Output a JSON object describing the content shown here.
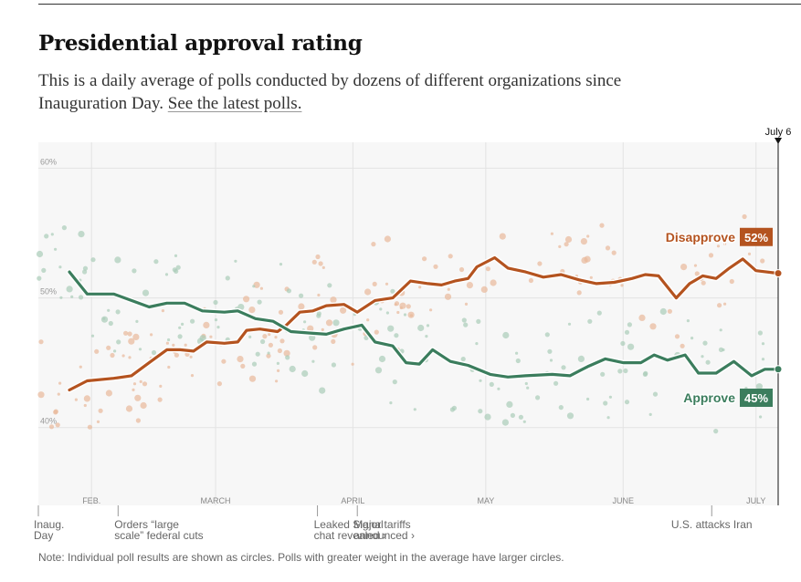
{
  "header": {
    "title": "Presidential approval rating",
    "subtitle_text": "This is a daily average of polls conducted by dozens of different organizations since Inauguration Day. ",
    "subtitle_link": "See the latest polls."
  },
  "note": "Note: Individual poll results are shown as circles. Polls with greater weight in the average have larger circles.",
  "colors": {
    "approve": "#3b7d5d",
    "disapprove": "#b4531f",
    "approve_dot": "#a9ccb8",
    "disapprove_dot": "#e8b89a",
    "plot_bg": "#f7f7f7",
    "grid": "#e3e3e3"
  },
  "chart_data": {
    "type": "line",
    "x_start": "2025-01-20",
    "x_end": "2025-07-06",
    "ylim": [
      34,
      62
    ],
    "y_ticks": [
      {
        "value": 60,
        "label": "60%"
      },
      {
        "value": 50,
        "label": "50%"
      },
      {
        "value": 40,
        "label": "40%"
      }
    ],
    "month_ticks": [
      {
        "label": "FEB.",
        "date": "2025-02-01"
      },
      {
        "label": "MARCH",
        "date": "2025-03-01"
      },
      {
        "label": "APRIL",
        "date": "2025-04-01"
      },
      {
        "label": "MAY",
        "date": "2025-05-01"
      },
      {
        "label": "JUNE",
        "date": "2025-06-01"
      },
      {
        "label": "JULY",
        "date": "2025-07-01"
      }
    ],
    "current_marker": {
      "label": "July 6",
      "date": "2025-07-06"
    },
    "series": [
      {
        "name": "Disapprove",
        "end_label": "52%",
        "points": [
          [
            "2025-01-27",
            42.9
          ],
          [
            "2025-01-31",
            43.6
          ],
          [
            "2025-02-06",
            43.8
          ],
          [
            "2025-02-10",
            44.0
          ],
          [
            "2025-02-14",
            45.0
          ],
          [
            "2025-02-18",
            46.0
          ],
          [
            "2025-02-21",
            46.0
          ],
          [
            "2025-02-24",
            45.9
          ],
          [
            "2025-02-27",
            46.6
          ],
          [
            "2025-03-03",
            46.5
          ],
          [
            "2025-03-06",
            46.6
          ],
          [
            "2025-03-08",
            47.5
          ],
          [
            "2025-03-11",
            47.6
          ],
          [
            "2025-03-15",
            47.4
          ],
          [
            "2025-03-17",
            47.9
          ],
          [
            "2025-03-20",
            48.9
          ],
          [
            "2025-03-23",
            49.0
          ],
          [
            "2025-03-26",
            49.4
          ],
          [
            "2025-03-30",
            49.5
          ],
          [
            "2025-04-02",
            48.9
          ],
          [
            "2025-04-06",
            49.8
          ],
          [
            "2025-04-10",
            50.0
          ],
          [
            "2025-04-14",
            51.3
          ],
          [
            "2025-04-18",
            51.1
          ],
          [
            "2025-04-21",
            51.0
          ],
          [
            "2025-04-24",
            51.3
          ],
          [
            "2025-04-27",
            51.5
          ],
          [
            "2025-04-29",
            52.4
          ],
          [
            "2025-05-03",
            53.1
          ],
          [
            "2025-05-06",
            52.3
          ],
          [
            "2025-05-10",
            52.0
          ],
          [
            "2025-05-14",
            51.6
          ],
          [
            "2025-05-18",
            51.8
          ],
          [
            "2025-05-22",
            51.4
          ],
          [
            "2025-05-26",
            51.1
          ],
          [
            "2025-05-30",
            51.2
          ],
          [
            "2025-06-03",
            51.5
          ],
          [
            "2025-06-06",
            51.8
          ],
          [
            "2025-06-09",
            51.7
          ],
          [
            "2025-06-13",
            50.0
          ],
          [
            "2025-06-16",
            51.1
          ],
          [
            "2025-06-19",
            51.7
          ],
          [
            "2025-06-22",
            51.5
          ],
          [
            "2025-06-25",
            52.3
          ],
          [
            "2025-06-28",
            53.0
          ],
          [
            "2025-07-01",
            52.1
          ],
          [
            "2025-07-06",
            51.9
          ]
        ]
      },
      {
        "name": "Approve",
        "end_label": "45%",
        "points": [
          [
            "2025-01-27",
            52.0
          ],
          [
            "2025-01-31",
            50.3
          ],
          [
            "2025-02-06",
            50.3
          ],
          [
            "2025-02-10",
            49.8
          ],
          [
            "2025-02-14",
            49.3
          ],
          [
            "2025-02-18",
            49.6
          ],
          [
            "2025-02-22",
            49.6
          ],
          [
            "2025-02-26",
            49.0
          ],
          [
            "2025-03-03",
            48.9
          ],
          [
            "2025-03-06",
            49.0
          ],
          [
            "2025-03-10",
            48.4
          ],
          [
            "2025-03-14",
            48.2
          ],
          [
            "2025-03-18",
            47.4
          ],
          [
            "2025-03-22",
            47.3
          ],
          [
            "2025-03-26",
            47.2
          ],
          [
            "2025-03-30",
            47.6
          ],
          [
            "2025-04-03",
            47.9
          ],
          [
            "2025-04-06",
            46.6
          ],
          [
            "2025-04-10",
            46.3
          ],
          [
            "2025-04-13",
            45.0
          ],
          [
            "2025-04-16",
            44.9
          ],
          [
            "2025-04-19",
            46.0
          ],
          [
            "2025-04-23",
            45.1
          ],
          [
            "2025-04-27",
            44.8
          ],
          [
            "2025-05-02",
            44.1
          ],
          [
            "2025-05-06",
            43.9
          ],
          [
            "2025-05-10",
            44.0
          ],
          [
            "2025-05-16",
            44.1
          ],
          [
            "2025-05-20",
            44.0
          ],
          [
            "2025-05-24",
            44.7
          ],
          [
            "2025-05-28",
            45.3
          ],
          [
            "2025-06-01",
            45.0
          ],
          [
            "2025-06-05",
            45.0
          ],
          [
            "2025-06-08",
            45.6
          ],
          [
            "2025-06-11",
            45.2
          ],
          [
            "2025-06-15",
            45.6
          ],
          [
            "2025-06-18",
            44.2
          ],
          [
            "2025-06-22",
            44.2
          ],
          [
            "2025-06-26",
            45.1
          ],
          [
            "2025-06-30",
            44.0
          ],
          [
            "2025-07-03",
            44.5
          ],
          [
            "2025-07-06",
            44.5
          ]
        ]
      }
    ],
    "annotations": [
      {
        "date": "2025-01-20",
        "lines": [
          "Inaug.",
          "Day"
        ]
      },
      {
        "date": "2025-02-07",
        "lines": [
          "Orders “large",
          "scale” federal cuts"
        ]
      },
      {
        "date": "2025-03-24",
        "lines": [
          "Leaked Signal",
          "chat revealed ›"
        ]
      },
      {
        "date": "2025-04-02",
        "lines": [
          "Major tariffs",
          "announced ›"
        ]
      },
      {
        "date": "2025-06-21",
        "lines": [
          "U.S. attacks Iran"
        ]
      }
    ]
  }
}
